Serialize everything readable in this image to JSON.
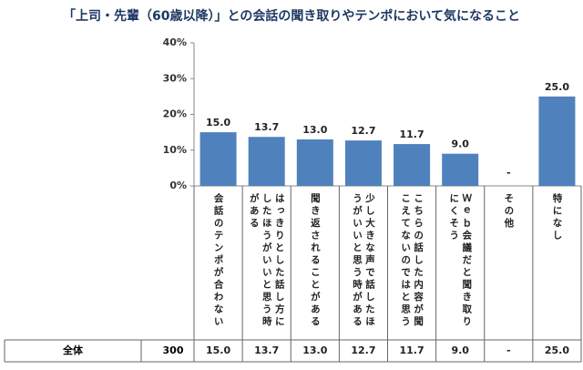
{
  "chart_data": {
    "type": "bar",
    "title": "「上司・先輩（60歳以降）」との会話の聞き取りやテンポにおいて気になること",
    "categories": [
      "会話のテンポが合わない",
      "はっきりとした話し方にしたほうがいいと思う時がある",
      "聞き返されることがある",
      "少し大きな声で話したほうがいいと思う時がある",
      "こちらの話した内容が聞こえてないのではと思う",
      "Ｗｅｂ会議だと聞き取りにくそう",
      "その他",
      "特になし"
    ],
    "values": [
      15.0,
      13.7,
      13.0,
      12.7,
      11.7,
      9.0,
      null,
      25.0
    ],
    "value_labels": [
      "15.0",
      "13.7",
      "13.0",
      "12.7",
      "11.7",
      "9.0",
      "-",
      "25.0"
    ],
    "color": "#4f81bd",
    "ylim": [
      0,
      40
    ],
    "yticks": [
      {
        "value": 0,
        "label": "0%"
      },
      {
        "value": 10,
        "label": "10%"
      },
      {
        "value": 20,
        "label": "20%"
      },
      {
        "value": 30,
        "label": "30%"
      },
      {
        "value": 40,
        "label": "40%"
      }
    ]
  },
  "table": {
    "row_label": "全体",
    "n": 300
  }
}
